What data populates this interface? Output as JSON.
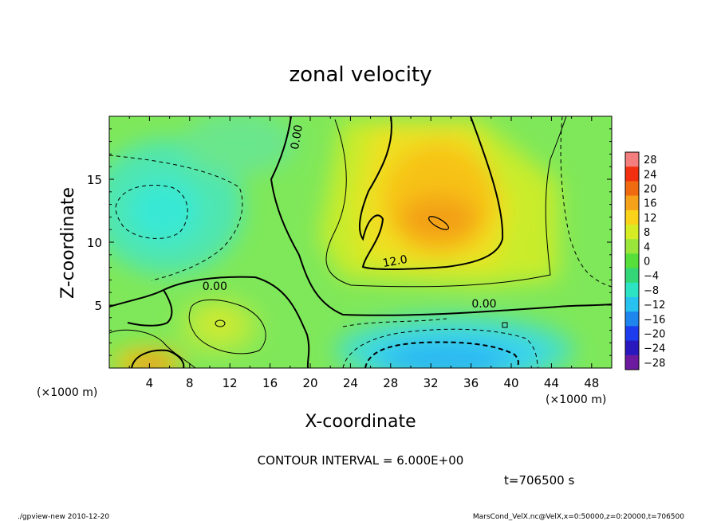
{
  "chart_data": {
    "type": "heatmap",
    "title": "zonal velocity",
    "xlabel": "X-coordinate",
    "ylabel": "Z-coordinate",
    "x_unit_left": "(×1000 m)",
    "x_unit_right": "(×1000 m)",
    "x_ticks": [
      "4",
      "8",
      "12",
      "16",
      "20",
      "24",
      "28",
      "32",
      "36",
      "40",
      "44",
      "48"
    ],
    "x_tick_values": [
      4,
      8,
      12,
      16,
      20,
      24,
      28,
      32,
      36,
      40,
      44,
      48
    ],
    "y_ticks": [
      "5",
      "10",
      "15"
    ],
    "y_tick_values": [
      5,
      10,
      15
    ],
    "xlim": [
      0,
      50
    ],
    "ylim": [
      0,
      20
    ],
    "colorbar": {
      "labels": [
        "28",
        "24",
        "20",
        "16",
        "12",
        "8",
        "4",
        "0",
        "−4",
        "−8",
        "−12",
        "−16",
        "−20",
        "−24",
        "−28"
      ],
      "values": [
        28,
        24,
        20,
        16,
        12,
        8,
        4,
        0,
        -4,
        -8,
        -12,
        -16,
        -20,
        -24,
        -28
      ],
      "range": [
        -30,
        30
      ]
    },
    "contour_labels": [
      {
        "text": "0.00",
        "x": 19.0,
        "y": 18.3,
        "rotate": -80
      },
      {
        "text": "0.00",
        "x": 10.5,
        "y": 6.2,
        "rotate": 0
      },
      {
        "text": "12.0",
        "x": 28.5,
        "y": 8.2,
        "rotate": -10
      },
      {
        "text": "0.00",
        "x": 37.3,
        "y": 4.8,
        "rotate": 0
      }
    ],
    "features": [
      {
        "name": "positive jet core",
        "x": 32,
        "y": 12,
        "value": 20
      },
      {
        "name": "negative near-surface flow",
        "x": 34,
        "y": 1.5,
        "value": -14
      },
      {
        "name": "surface positive patch",
        "x": 5,
        "y": 0.8,
        "value": 14
      },
      {
        "name": "upper-left negative cell",
        "x": 5,
        "y": 13,
        "value": -7
      },
      {
        "name": "low-level positive eddy",
        "x": 11,
        "y": 4,
        "value": 8
      }
    ],
    "contour_interval_text": "CONTOUR INTERVAL = 6.000E+00",
    "time_text": "t=706500 s"
  },
  "footer": {
    "left": "./gpview-new  2010-12-20",
    "right": "MarsCond_VelX.nc@VelX,x=0:50000,z=0:20000,t=706500"
  }
}
